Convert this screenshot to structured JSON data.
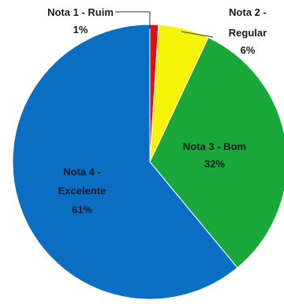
{
  "chart_data": {
    "type": "pie",
    "title": "",
    "slices": [
      {
        "label_line1": "Nota 1 - Ruim",
        "label_line2": "",
        "pct_label": "1%",
        "value": 1,
        "color": "#e01010"
      },
      {
        "label_line1": "Nota 2 -",
        "label_line2": "Regular",
        "pct_label": "6%",
        "value": 6,
        "color": "#f5f50a"
      },
      {
        "label_line1": "Nota 3 - Bom",
        "label_line2": "",
        "pct_label": "32%",
        "value": 32,
        "color": "#1aa83a"
      },
      {
        "label_line1": "Nota 4 -",
        "label_line2": "Excelente",
        "pct_label": "61%",
        "value": 61,
        "color": "#0a6fc2"
      }
    ]
  }
}
